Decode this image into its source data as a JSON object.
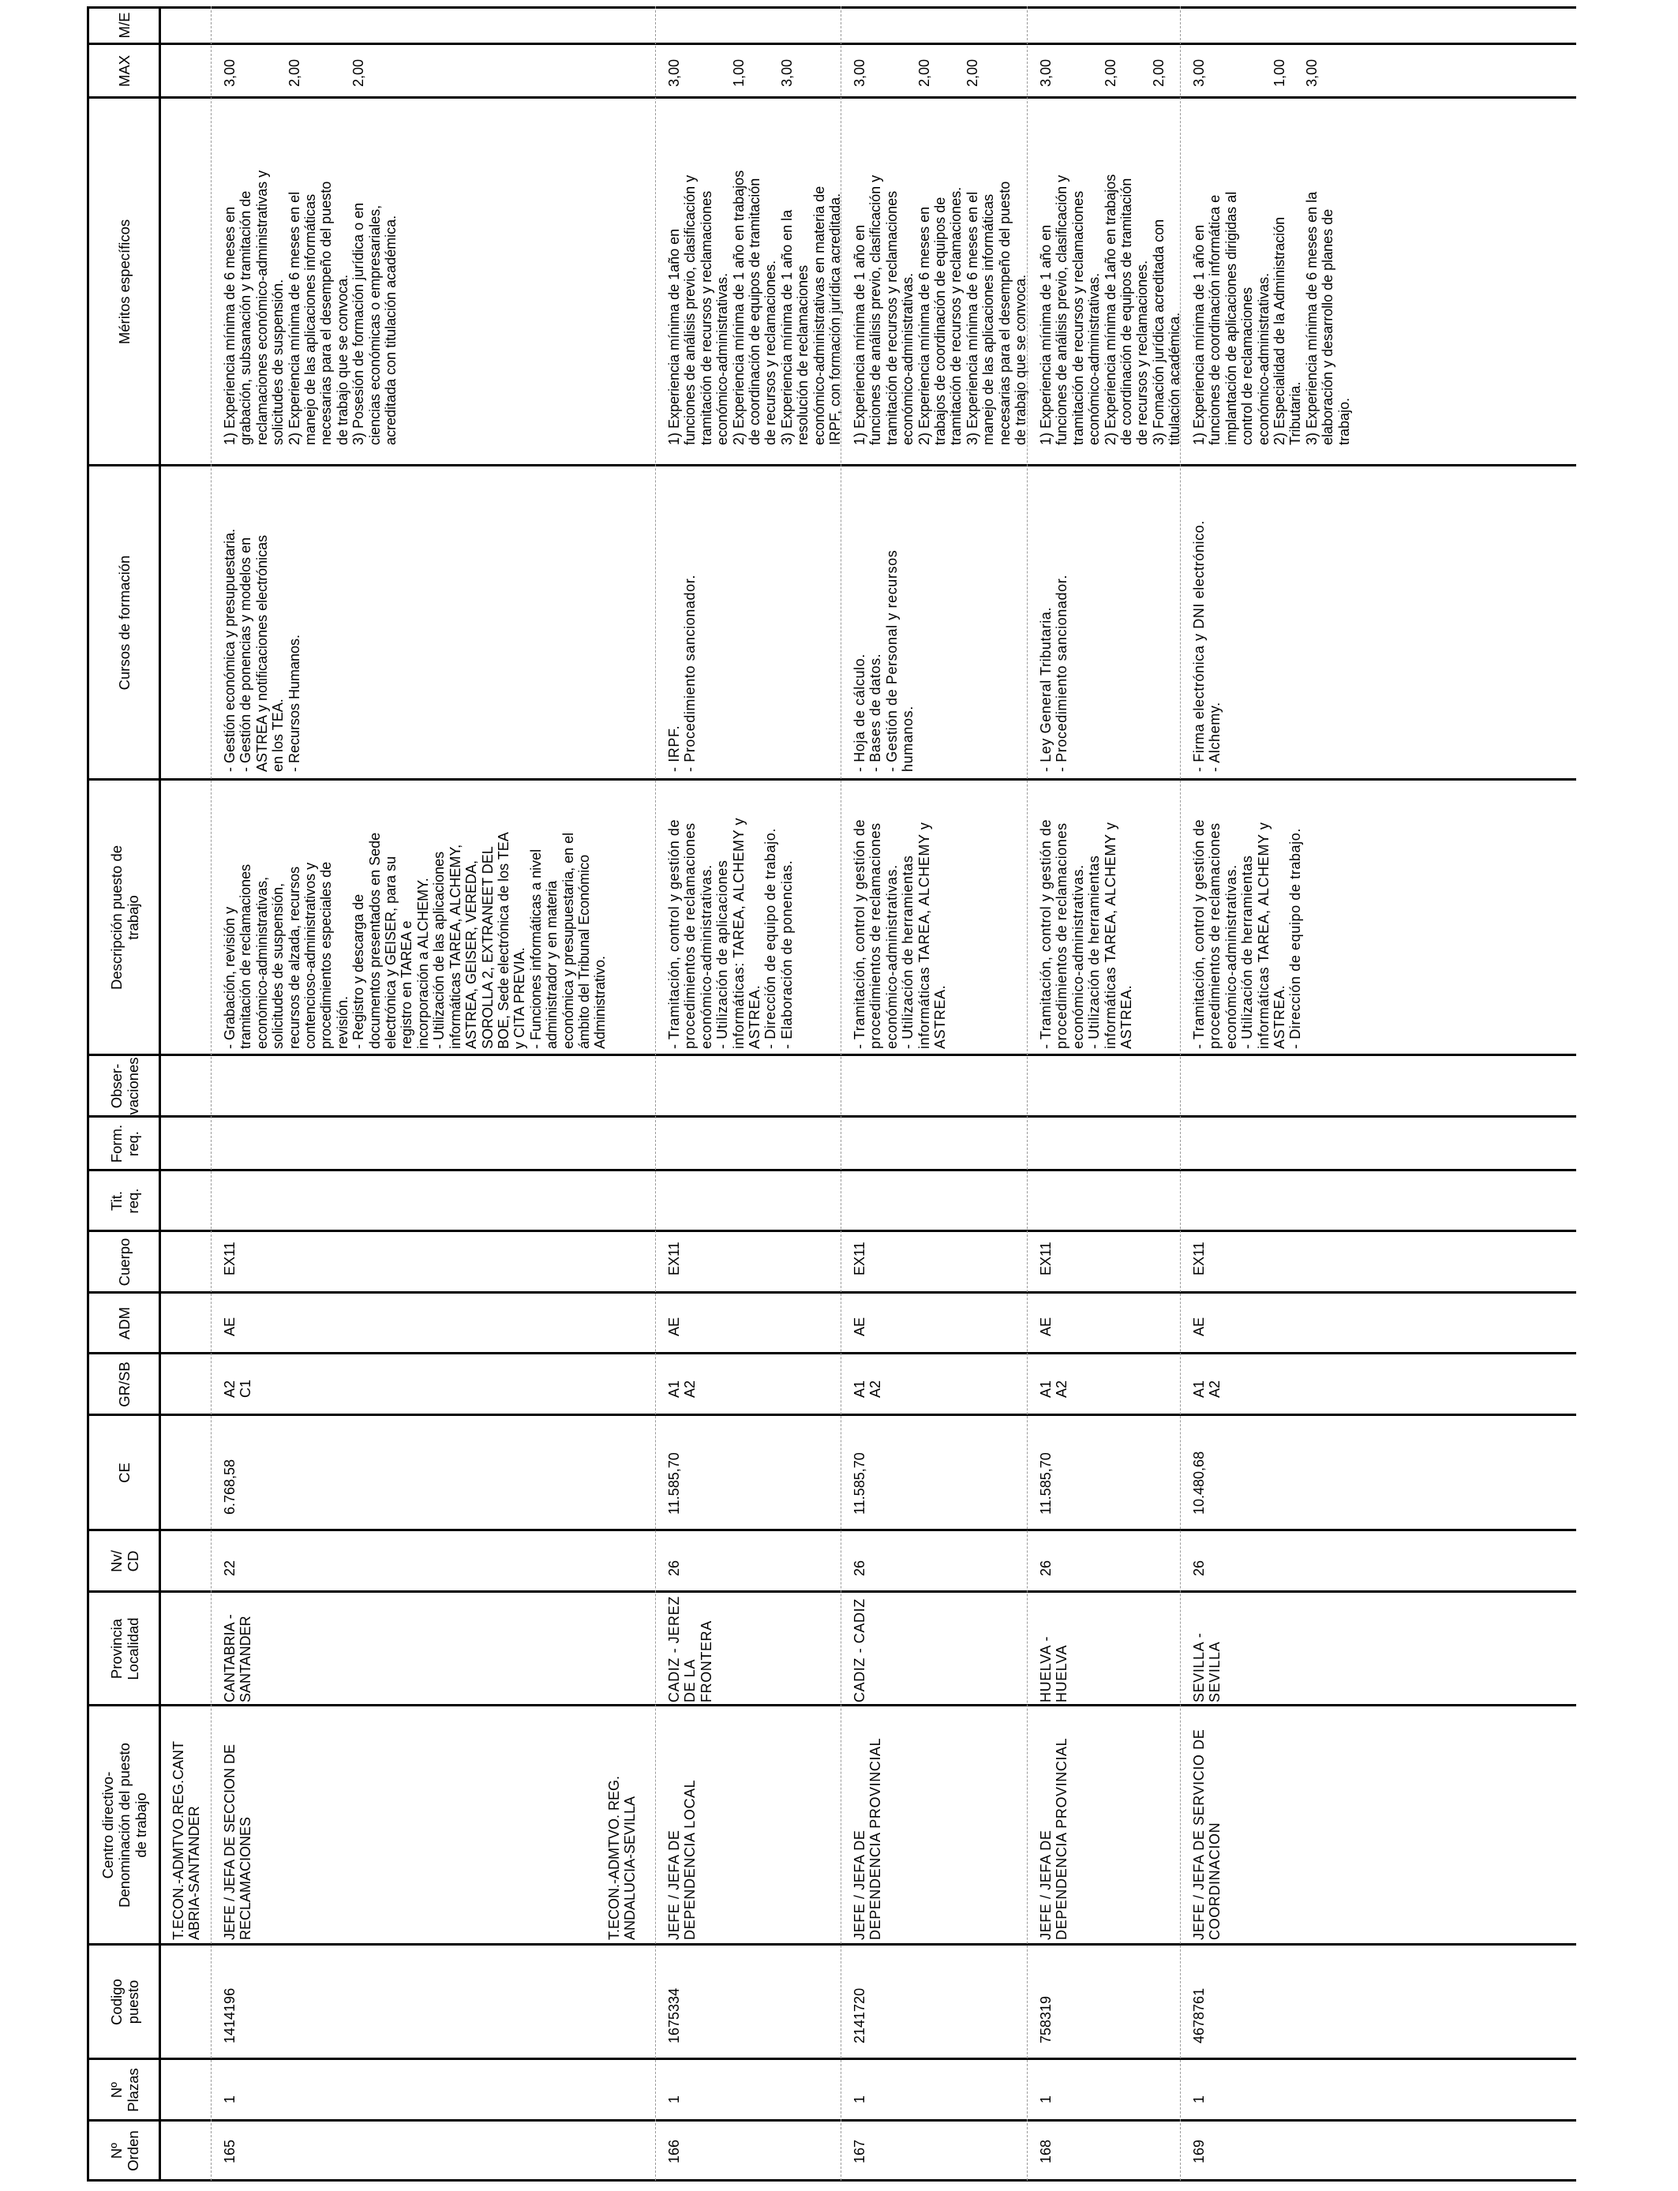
{
  "header": {
    "columns": [
      "Nº\nOrden",
      "Nº\nPlazas",
      "Codigo\npuesto",
      "Centro directivo-\nDenominación del puesto\nde trabajo",
      "Provincia\nLocalidad",
      "Nv/\nCD",
      "CE",
      "GR/SB",
      "ADM",
      "Cuerpo",
      "Tit.\nreq.",
      "Form.\nreq.",
      "Obser-\nvaciones",
      "Descripción puesto de\ntrabajo",
      "Cursos de formación",
      "Méritos específicos",
      "MAX",
      "M/E"
    ]
  },
  "records": [
    {
      "group": "T.ECON.-ADMTVO.REG.CANT\nABRIA-SANTANDER",
      "orden": "165",
      "plazas": "1",
      "codigo": "1414196",
      "denominacion": "JEFE / JEFA DE SECCION DE\nRECLAMACIONES",
      "provincia": "CANTABRIA -\nSANTANDER",
      "nivel": "22",
      "ce": "6.768,58",
      "gr": "A2\nC1",
      "adm": "AE",
      "cuerpo": "EX11",
      "tit": "",
      "form": "",
      "obs": "",
      "descripcion": "- Grabación, revisión y\ntramitación de reclamaciones\neconómico-administrativas,\nsolicitudes de suspensión,\nrecursos de alzada, recursos\ncontencioso-administrativos y\nprocedimientos especiales de\nrevisión.\n- Registro y descarga de\ndocumentos presentados en Sede\nelectrónica y GEISER, para su\nregistro en TAREA e\nincorporación a ALCHEMY.\n- Utilización de las aplicaciones\ninformáticas TAREA, ALCHEMY,\nASTREA, GEISER, VEREDA,\nSOROLLA 2, EXTRANEET DEL\nBOE, Sede electrónica de los TEA\ny CITA PREVIA.\n- Funciones informáticas a nivel\nadministrador y en materia\neconómica y presupuestaria, en el\námbito del Tribunal Económico\nAdministrativo.",
      "cursos": "- Gestión económica y presupuestaria.\n- Gestión de ponencias y modelos en\nASTREA y notificaciones electrónicas\nen los TEA.\n- Recursos Humanos.",
      "meritos": [
        {
          "text": "1) Experiencia mínima de 6 meses en\ngrabación, subsanación y tramitación de\nreclamaciones económico-administrativas y\nsolicitudes de suspensión.",
          "max": "3,00"
        },
        {
          "text": "2) Experiencia mínima de 6 meses en el\nmanejo de las aplicaciones informáticas\nnecesarias para el desempeño del puesto\nde trabajo que se convoca.",
          "max": "2,00"
        },
        {
          "text": "3) Posesión de formación jurídica o en\nciencias económicas o empresariales,\nacreditada con titulación académica.",
          "max": "2,00"
        }
      ],
      "me": ""
    },
    {
      "group": "T.ECON.-ADMTVO. REG.\nANDALUCIA-SEVILLA",
      "orden": "166",
      "plazas": "1",
      "codigo": "1675334",
      "denominacion": "JEFE / JEFA DE\nDEPENDENCIA LOCAL",
      "provincia": "CADIZ - JEREZ\nDE LA\nFRONTERA",
      "nivel": "26",
      "ce": "11.585,70",
      "gr": "A1\nA2",
      "adm": "AE",
      "cuerpo": "EX11",
      "tit": "",
      "form": "",
      "obs": "",
      "descripcion": "- Tramitación, control y gestión de\nprocedimientos de reclamaciones\neconómico-administrativas.\n- Utilización de aplicaciones\ninformáticas: TAREA, ALCHEMY y\nASTREA.\n- Dirección de equipo de trabajo.\n- Elaboración de ponencias.",
      "cursos": "- IRPF.\n- Procedimiento sancionador.",
      "meritos": [
        {
          "text": "1) Experiencia mínima de 1año en\nfunciones de análisis previo, clasificación y\ntramitación de recursos y reclamaciones\neconómico-administrativas.",
          "max": "3,00"
        },
        {
          "text": "2) Experiencia  mínima de 1 año en trabajos\nde coordinación de equipos de tramitación\nde recursos y reclamaciones.",
          "max": "1,00"
        },
        {
          "text": "3) Experiencia  mínima de 1 año en la\nresolución de reclamaciones\neconómico-administrativas en materia de\nIRPF, con formación jurídica acreditada.",
          "max": "3,00"
        }
      ],
      "me": ""
    },
    {
      "group": "",
      "orden": "167",
      "plazas": "1",
      "codigo": "2141720",
      "denominacion": "JEFE / JEFA DE\nDEPENDENCIA PROVINCIAL",
      "provincia": "CADIZ - CADIZ",
      "nivel": "26",
      "ce": "11.585,70",
      "gr": "A1\nA2",
      "adm": "AE",
      "cuerpo": "EX11",
      "tit": "",
      "form": "",
      "obs": "",
      "descripcion": "- Tramitación, control y gestión de\nprocedimientos de reclamaciones\neconómico-administrativas.\n- Utilización de herramientas\ninformáticas TAREA, ALCHEMY y\nASTREA.",
      "cursos": "- Hoja de cálculo.\n- Bases de datos.\n- Gestión de Personal y recursos\nhumanos.",
      "meritos": [
        {
          "text": "1) Experiencia mínima de 1 año en\nfunciones de análisis previo, clasificación y\ntramitación de recursos y reclamaciones\neconómico-administrativas.",
          "max": "3,00"
        },
        {
          "text": "2) Experiencia  mínima de 6 meses en\ntrabajos de coordinación de equipos de\ntramitación de recursos y reclamaciones.",
          "max": "2,00"
        },
        {
          "text": "3) Experiencia mínima de 6 meses en el\nmanejo de las aplicaciones informáticas\nnecesarias para el desempeño del puesto\nde trabajo que se convoca.",
          "max": "2,00"
        }
      ],
      "me": ""
    },
    {
      "group": "",
      "orden": "168",
      "plazas": "1",
      "codigo": "758319",
      "denominacion": "JEFE / JEFA DE\nDEPENDENCIA PROVINCIAL",
      "provincia": "HUELVA -\nHUELVA",
      "nivel": "26",
      "ce": "11.585,70",
      "gr": "A1\nA2",
      "adm": "AE",
      "cuerpo": "EX11",
      "tit": "",
      "form": "",
      "obs": "",
      "descripcion": "- Tramitación, control y gestión de\nprocedimientos de reclamaciones\neconómico-administrativas.\n- Utilización de herramientas\ninformáticas TAREA, ALCHEMY y\nASTREA.",
      "cursos": "- Ley General Tributaria.\n- Procedimiento sancionador.",
      "meritos": [
        {
          "text": "1) Experiencia mínima de 1 año en\nfunciones de análisis previo, clasificación y\ntramitación de recursos y reclamaciones\neconómico-administrativas.",
          "max": "3,00"
        },
        {
          "text": "2) Experiencia  mínima de 1año en trabajos\nde coordinación de equipos de tramitación\nde recursos y reclamaciones.",
          "max": "2,00"
        },
        {
          "text": "3) Fomación jurídica acreditada con\ntitulación académica.",
          "max": "2,00"
        }
      ],
      "me": ""
    },
    {
      "group": "",
      "orden": "169",
      "plazas": "1",
      "codigo": "4678761",
      "denominacion": "JEFE / JEFA DE SERVICIO DE\nCOORDINACION",
      "provincia": "SEVILLA -\nSEVILLA",
      "nivel": "26",
      "ce": "10.480,68",
      "gr": "A1\nA2",
      "adm": "AE",
      "cuerpo": "EX11",
      "tit": "",
      "form": "",
      "obs": "",
      "descripcion": "- Tramitación, control y gestión de\nprocedimientos de reclamaciones\neconómico-administrativas.\n- Utilización de herramientas\ninformáticas TAREA, ALCHEMY y\nASTREA.\n- Dirección de equipo de trabajo.",
      "cursos": "- Firma electrónica y DNI electrónico.\n- Alchemy.",
      "meritos": [
        {
          "text": "1) Experiencia mínima de 1 año en\nfunciones de  coordinación informática e\nimplantación de aplicaciones dirigidas al\ncontrol de reclamaciones\neconómico-administrativas.",
          "max": "3,00"
        },
        {
          "text": "2) Especialidad de la Administración\nTributaria.",
          "max": "1,00"
        },
        {
          "text": "3) Experiencia mínima de 6 meses en la\nelaboración y desarrollo de planes de\ntrabajo.",
          "max": "3,00"
        }
      ],
      "me": ""
    }
  ]
}
